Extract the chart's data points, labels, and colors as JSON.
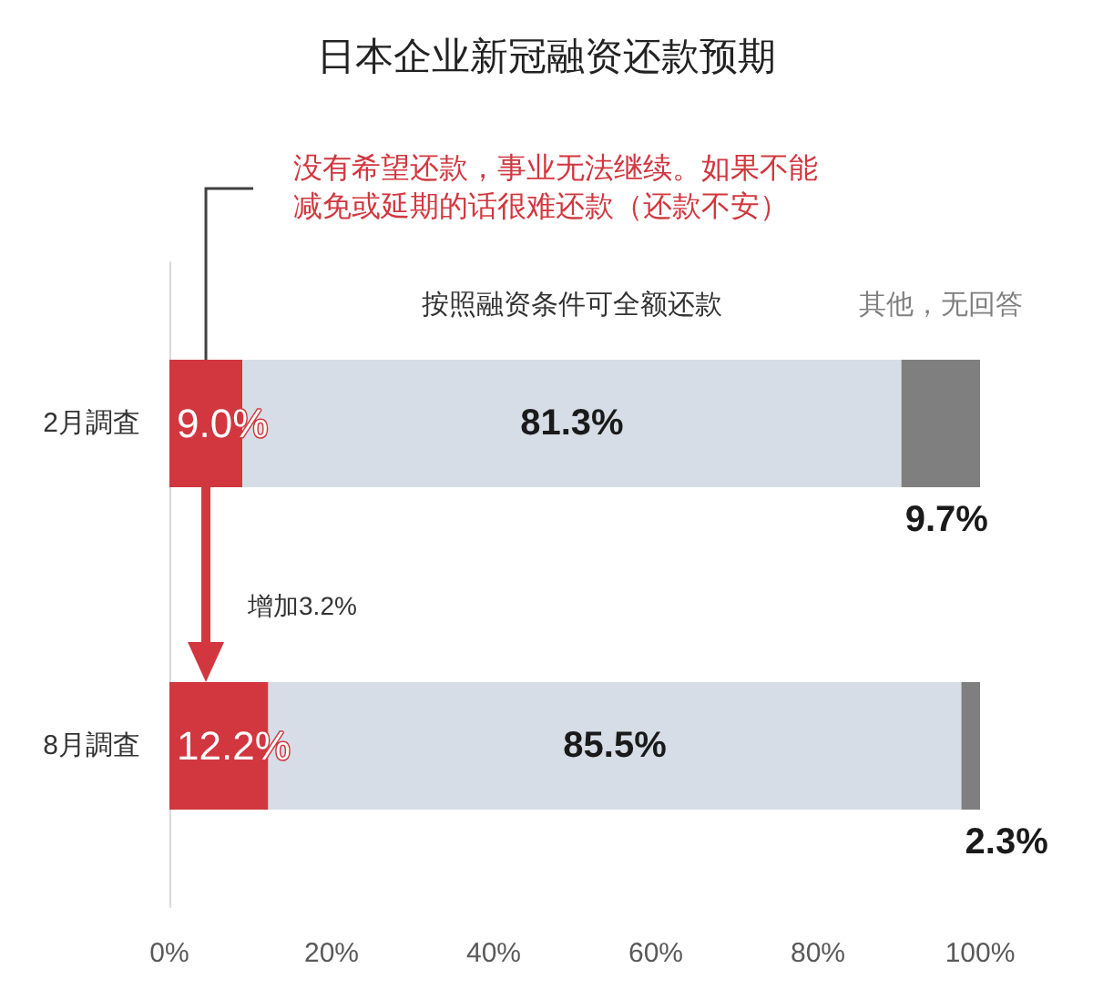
{
  "chart_data": {
    "type": "bar",
    "orientation": "horizontal",
    "stacked": true,
    "title": "日本企业新冠融资还款预期",
    "categories": [
      "2月調査",
      "8月調査"
    ],
    "series": [
      {
        "name": "没有希望还款，事业无法继续。如果不能减免或延期的话很难还款（还款不安）",
        "color": "#d2373f",
        "values": [
          9.0,
          12.2
        ],
        "value_labels": [
          "9.0%",
          "12.2%"
        ]
      },
      {
        "name": "按照融资条件可全额还款",
        "color": "#d6dde6",
        "values": [
          81.3,
          85.5
        ],
        "value_labels": [
          "81.3%",
          "85.5%"
        ]
      },
      {
        "name": "其他，无回答",
        "color": "#7f7f7f",
        "values": [
          9.7,
          2.3
        ],
        "value_labels": [
          "9.7%",
          "2.3%"
        ]
      }
    ],
    "xlim": [
      0,
      100
    ],
    "xticks": [
      {
        "value": 0,
        "label": "0%"
      },
      {
        "value": 20,
        "label": "20%"
      },
      {
        "value": 40,
        "label": "40%"
      },
      {
        "value": 60,
        "label": "60%"
      },
      {
        "value": 80,
        "label": "80%"
      },
      {
        "value": 100,
        "label": "100%"
      }
    ],
    "annotations": [
      "增加3.2%"
    ],
    "grid": false
  }
}
